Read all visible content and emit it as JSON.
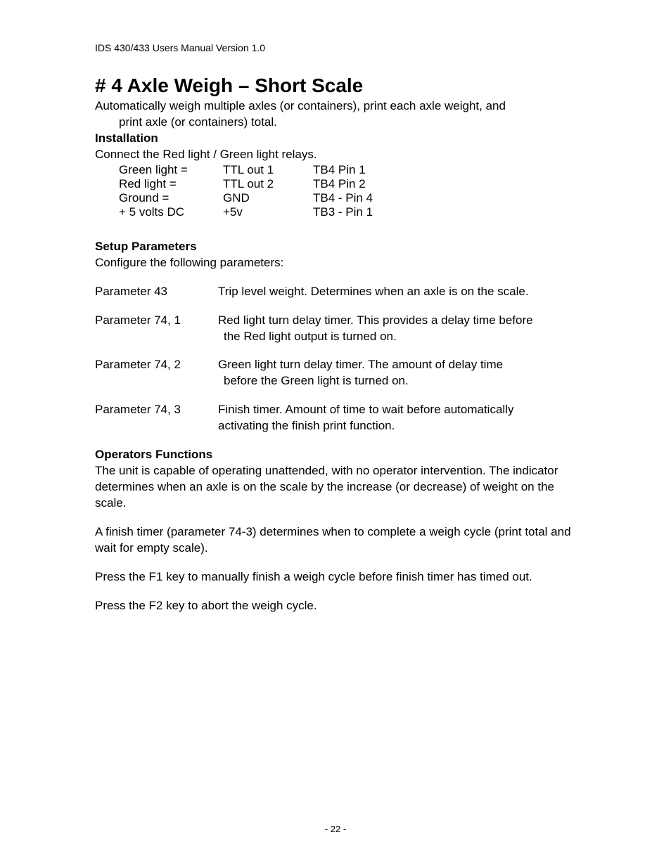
{
  "header": "IDS 430/433 Users Manual Version 1.0",
  "title": "# 4 Axle Weigh – Short Scale",
  "intro_line1": "Automatically weigh multiple axles (or containers), print each axle weight, and",
  "intro_line2": "print axle (or containers) total.",
  "installation": {
    "heading": "Installation",
    "text": "Connect the Red light / Green light relays.",
    "rows": [
      {
        "c1": "Green light =",
        "c2": "TTL out 1",
        "c3": "TB4 Pin 1"
      },
      {
        "c1": "Red light =",
        "c2": "TTL out 2",
        "c3": "TB4 Pin 2"
      },
      {
        "c1": "Ground =",
        "c2": "GND",
        "c3": "TB4 - Pin 4"
      },
      {
        "c1": "+ 5 volts DC",
        "c2": "+5v",
        "c3": "TB3 - Pin 1"
      }
    ]
  },
  "setup": {
    "heading": "Setup Parameters",
    "text": "Configure the following parameters:",
    "params": [
      {
        "label": "Parameter 43",
        "l1": "Trip level weight. Determines when an axle is on the scale.",
        "l2": ""
      },
      {
        "label": "Parameter 74, 1",
        "l1": "Red light turn delay timer. This provides a delay time before",
        "l2": "the Red light output is turned on."
      },
      {
        "label": "Parameter 74, 2",
        "l1": "Green light turn delay timer. The amount of delay time",
        "l2": "before the Green light is turned on."
      },
      {
        "label": "Parameter 74, 3",
        "l1": "Finish timer. Amount of time to wait before automatically",
        "l2": "activating the finish print function."
      }
    ]
  },
  "ops": {
    "heading": "Operators Functions",
    "p1": "The unit is capable of operating unattended, with no operator intervention. The indicator determines when an axle is on the scale by the increase (or decrease) of weight on the scale.",
    "p2": "A finish timer (parameter 74-3) determines when to complete a weigh cycle (print total and wait for empty scale).",
    "p3": "Press the F1 key to manually finish a weigh cycle before finish timer has timed out.",
    "p4": "Press the F2 key to abort the weigh cycle."
  },
  "page_number": "- 22 -"
}
